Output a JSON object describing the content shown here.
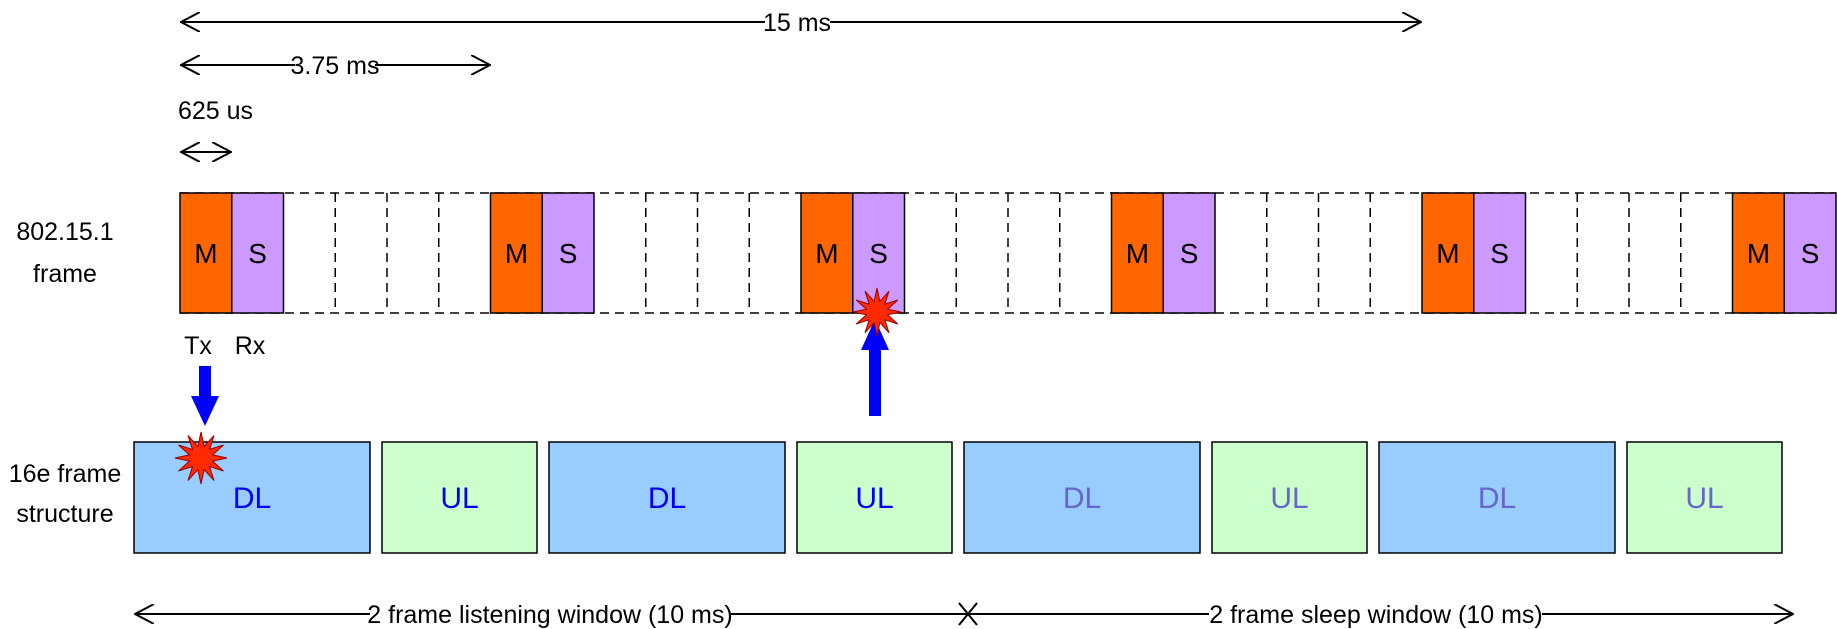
{
  "measures": {
    "total": "15 ms",
    "sub": "3.75 ms",
    "slot": "625 us"
  },
  "row_labels": {
    "bt_line1": "802.15.1",
    "bt_line2": "frame",
    "wimax_line1": "16e frame",
    "wimax_line2": "structure"
  },
  "bt": {
    "master": "M",
    "slave": "S",
    "tx": "Tx",
    "rx": "Rx",
    "slot_count": 32,
    "active_pairs": [
      0,
      6,
      12,
      18,
      24,
      30
    ]
  },
  "wimax": {
    "frames": [
      {
        "dl": "DL",
        "ul": "UL",
        "window": "listening"
      },
      {
        "dl": "DL",
        "ul": "UL",
        "window": "listening"
      },
      {
        "dl": "DL",
        "ul": "UL",
        "window": "sleep"
      },
      {
        "dl": "DL",
        "ul": "UL",
        "window": "sleep"
      }
    ]
  },
  "windows": {
    "listening": "2 frame listening window (10 ms)",
    "sleep": "2 frame sleep window (10 ms)"
  },
  "colors": {
    "master": "#FF6600",
    "slave": "#CC99FF",
    "dl": "#99CCFF",
    "ul": "#CCFFCC",
    "text_active": "#0000FF",
    "text_sleep": "#6666CC",
    "arrow": "#0000FF",
    "collision": "#FF2A00"
  }
}
